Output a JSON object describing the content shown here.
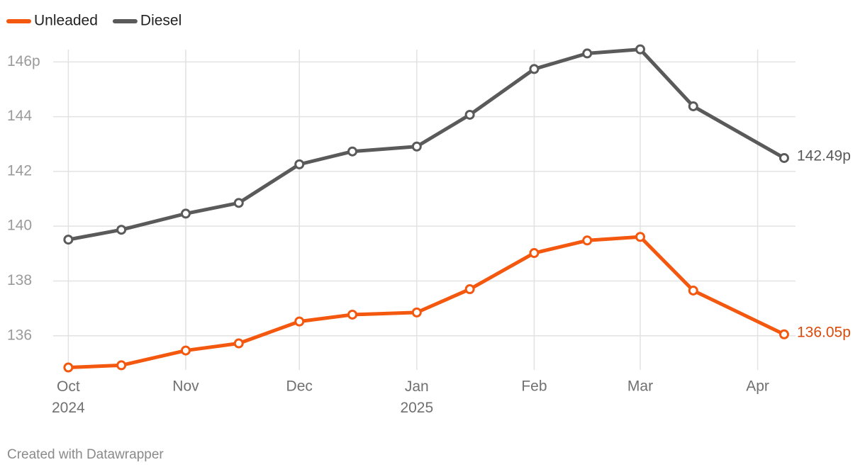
{
  "chart_data": {
    "type": "line",
    "x": [
      0,
      14,
      31,
      45,
      61,
      75,
      92,
      106,
      123,
      137,
      151,
      165,
      189
    ],
    "xlim": [
      -4,
      192
    ],
    "xticks": [
      {
        "value": 0,
        "label": "Oct\n2024"
      },
      {
        "value": 31,
        "label": "Nov"
      },
      {
        "value": 61,
        "label": "Dec"
      },
      {
        "value": 92,
        "label": "Jan\n2025"
      },
      {
        "value": 123,
        "label": "Feb"
      },
      {
        "value": 151,
        "label": "Mar"
      },
      {
        "value": 182,
        "label": "Apr"
      }
    ],
    "ylim": [
      134.75,
      146.45
    ],
    "yticks": [
      136,
      138,
      140,
      142,
      144,
      {
        "value": 146,
        "label": "146p"
      }
    ],
    "grid": true,
    "legend": "top-left",
    "series": [
      {
        "name": "Unleaded",
        "color": "#f4580f",
        "label_color": "#d94a0a",
        "values": [
          134.84,
          134.92,
          135.46,
          135.72,
          136.52,
          136.77,
          136.85,
          137.7,
          139.02,
          139.48,
          139.61,
          137.65,
          136.05
        ],
        "value_labels": [
          null,
          null,
          null,
          null,
          null,
          null,
          null,
          null,
          null,
          null,
          null,
          null,
          "136.05p"
        ]
      },
      {
        "name": "Diesel",
        "color": "#5a5a5a",
        "label_color": "#5a5a5a",
        "values": [
          139.51,
          139.87,
          140.46,
          140.85,
          142.26,
          142.73,
          142.91,
          144.07,
          145.74,
          146.31,
          146.46,
          144.38,
          142.49
        ],
        "value_labels": [
          null,
          null,
          null,
          null,
          null,
          null,
          null,
          null,
          null,
          null,
          null,
          null,
          "142.49p"
        ]
      }
    ],
    "footer": "Created with Datawrapper"
  }
}
